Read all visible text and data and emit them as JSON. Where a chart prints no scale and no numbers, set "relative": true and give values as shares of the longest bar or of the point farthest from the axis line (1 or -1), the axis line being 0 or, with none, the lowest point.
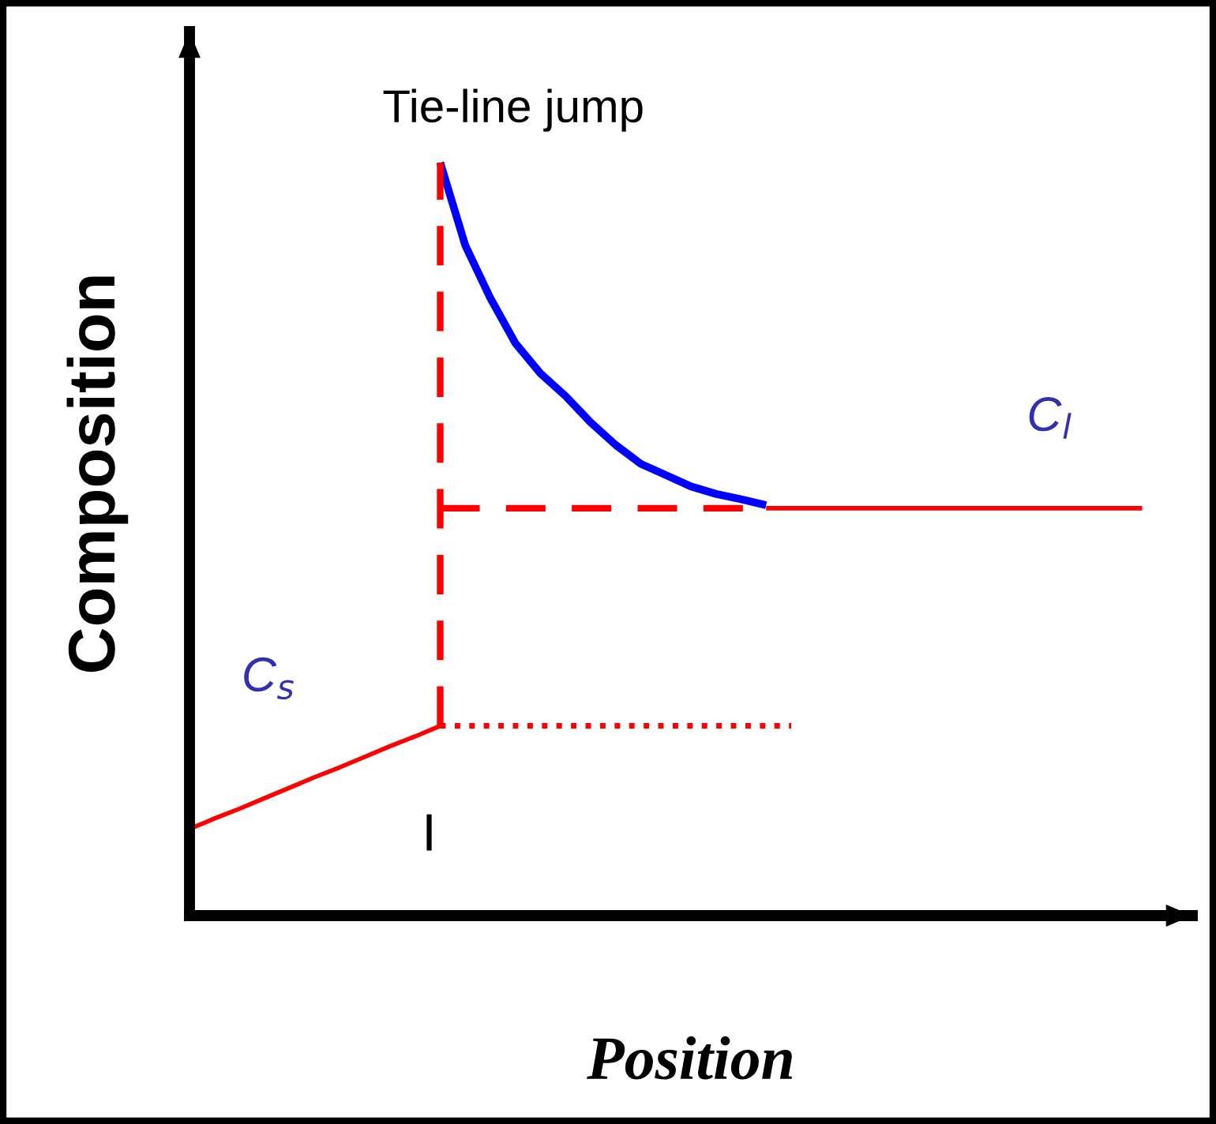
{
  "chart_data": {
    "type": "line",
    "relative": true,
    "xlabel": "Position",
    "ylabel": "Composition",
    "tick_labels": false,
    "grid": false,
    "categories": [
      null,
      null,
      null,
      null,
      null,
      null,
      null,
      null,
      null,
      null,
      null,
      null,
      null,
      null,
      null,
      null,
      null,
      null,
      null,
      null,
      null,
      null,
      null,
      null,
      null,
      null,
      null,
      null,
      null,
      null,
      null,
      null,
      null,
      null,
      null,
      null,
      null,
      null,
      null,
      null,
      null
    ],
    "series": [
      {
        "color": "#ff0000",
        "line_style": "solid",
        "values": [
          0.115,
          0.129,
          0.142,
          0.156,
          0.17,
          0.184,
          0.197,
          0.211,
          0.225,
          0.238,
          0.252,
          null,
          null,
          null,
          null,
          null,
          null,
          null,
          null,
          null,
          null,
          null,
          null,
          null,
          null,
          null,
          null,
          null,
          null,
          null,
          null,
          null,
          null,
          null,
          null,
          null,
          null,
          null,
          null,
          null,
          null
        ]
      },
      {
        "color": "#ff0000",
        "line_style": "dotted",
        "values": [
          null,
          null,
          null,
          null,
          null,
          null,
          null,
          null,
          null,
          null,
          0.252,
          0.252,
          0.252,
          0.252,
          0.252,
          0.252,
          0.252,
          0.252,
          0.252,
          0.252,
          0.252,
          0.252,
          0.252,
          0.252,
          0.252,
          null,
          null,
          null,
          null,
          null,
          null,
          null,
          null,
          null,
          null,
          null,
          null,
          null,
          null,
          null,
          null
        ]
      },
      {
        "color": "#ff0000",
        "line_style": "dashed",
        "values": [
          null,
          null,
          null,
          null,
          null,
          null,
          null,
          null,
          null,
          null,
          0.541,
          0.541,
          0.541,
          0.541,
          0.541,
          0.541,
          0.541,
          0.541,
          0.541,
          0.541,
          0.541,
          0.541,
          0.541,
          0.541,
          null,
          null,
          null,
          null,
          null,
          null,
          null,
          null,
          null,
          null,
          null,
          null,
          null,
          null,
          null,
          null,
          null
        ]
      },
      {
        "color": "#ff0000",
        "line_style": "solid",
        "values": [
          null,
          null,
          null,
          null,
          null,
          null,
          null,
          null,
          null,
          null,
          null,
          null,
          null,
          null,
          null,
          null,
          null,
          null,
          null,
          null,
          null,
          null,
          null,
          0.541,
          0.541,
          0.541,
          0.541,
          0.541,
          0.541,
          0.541,
          0.541,
          0.541,
          0.541,
          0.541,
          0.541,
          0.541,
          0.541,
          0.541,
          0.541,
          null,
          null
        ]
      },
      {
        "color": "#0000ff",
        "line_style": "solid",
        "values": [
          null,
          null,
          null,
          null,
          null,
          null,
          null,
          null,
          null,
          null,
          1.0,
          0.89,
          0.82,
          0.76,
          0.72,
          0.69,
          0.655,
          0.625,
          0.6,
          0.585,
          0.57,
          0.56,
          0.553,
          0.545,
          null,
          null,
          null,
          null,
          null,
          null,
          null,
          null,
          null,
          null,
          null,
          null,
          null,
          null,
          null,
          null,
          null
        ]
      }
    ],
    "annotations": [
      "Tie-line jump",
      "C$_{s}$",
      "C$_{l}$",
      "I"
    ]
  }
}
